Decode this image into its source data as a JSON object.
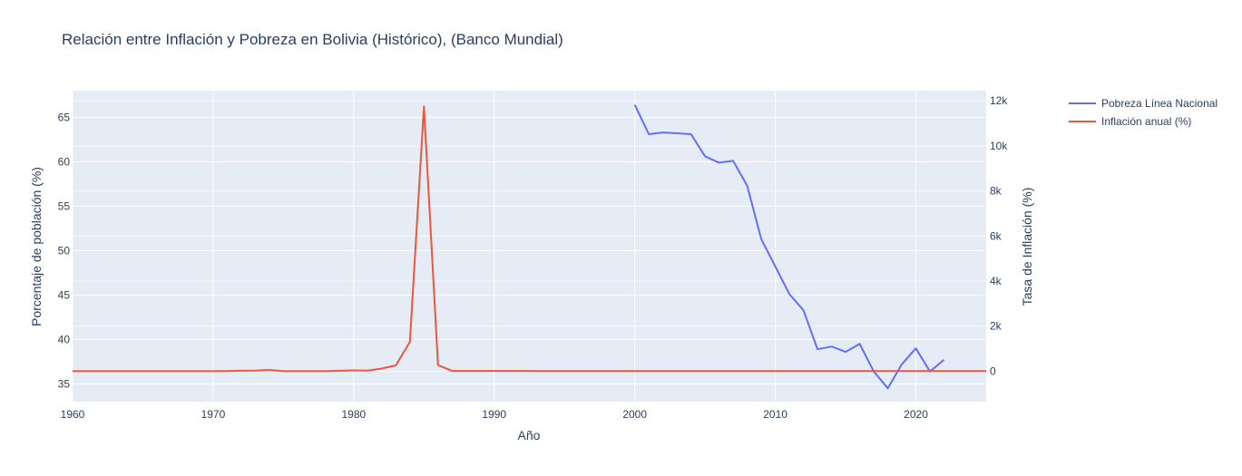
{
  "chart_data": {
    "type": "line",
    "title": "Relación entre Inflación y Pobreza en Bolivia (Histórico), (Banco Mundial)",
    "xlabel": "Año",
    "ylabel": "Porcentaje de población (%)",
    "y2label": "Tasa de Inflación (%)",
    "xlim": [
      1960,
      2025
    ],
    "ylim": [
      33,
      68
    ],
    "y2lim": [
      -1350,
      12450
    ],
    "x_ticks": [
      1960,
      1970,
      1980,
      1990,
      2000,
      2010,
      2020
    ],
    "y_ticks": [
      35,
      40,
      45,
      50,
      55,
      60,
      65
    ],
    "y2_ticks": [
      0,
      2000,
      4000,
      6000,
      8000,
      10000,
      12000
    ],
    "y2_tick_labels": [
      "0",
      "2k",
      "4k",
      "6k",
      "8k",
      "10k",
      "12k"
    ],
    "grid": true,
    "legend_position": "top-right, outside plot",
    "series": [
      {
        "name": "Pobreza Línea Nacional",
        "axis": "left",
        "color": "#636efa",
        "x": [
          2000,
          2001,
          2002,
          2003,
          2004,
          2005,
          2006,
          2007,
          2008,
          2009,
          2010,
          2011,
          2012,
          2013,
          2014,
          2015,
          2016,
          2017,
          2018,
          2019,
          2020,
          2021,
          2022
        ],
        "y": [
          66.4,
          63.1,
          63.3,
          63.2,
          63.1,
          60.6,
          59.9,
          60.1,
          57.3,
          51.3,
          48.2,
          45.1,
          43.3,
          38.9,
          39.2,
          38.6,
          39.5,
          36.4,
          34.5,
          37.2,
          39.0,
          36.4,
          37.7
        ]
      },
      {
        "name": "Inflación anual (%)",
        "axis": "right",
        "color": "#ef553b",
        "x": [
          1960,
          1961,
          1962,
          1963,
          1964,
          1965,
          1966,
          1967,
          1968,
          1969,
          1970,
          1971,
          1972,
          1973,
          1974,
          1975,
          1976,
          1977,
          1978,
          1979,
          1980,
          1981,
          1982,
          1983,
          1984,
          1985,
          1986,
          1987,
          1988,
          1989,
          1990,
          1991,
          1992,
          1993,
          1994,
          1995,
          1996,
          1997,
          1998,
          1999,
          2000,
          2001,
          2002,
          2003,
          2004,
          2005,
          2006,
          2007,
          2008,
          2009,
          2010,
          2011,
          2012,
          2013,
          2014,
          2015,
          2016,
          2017,
          2018,
          2019,
          2020,
          2021,
          2022,
          2023,
          2024,
          2025
        ],
        "y": [
          0,
          0,
          0,
          0,
          0,
          0,
          0,
          0,
          0,
          0,
          0,
          10,
          20,
          30,
          60,
          0,
          0,
          0,
          0,
          20,
          40,
          30,
          120,
          260,
          1300,
          11750,
          270,
          15,
          15,
          15,
          15,
          15,
          12,
          10,
          10,
          10,
          10,
          8,
          8,
          5,
          5,
          5,
          5,
          5,
          5,
          5,
          5,
          5,
          5,
          5,
          5,
          5,
          5,
          5,
          5,
          5,
          5,
          5,
          5,
          5,
          5,
          5,
          5,
          5,
          5,
          10
        ]
      }
    ]
  }
}
